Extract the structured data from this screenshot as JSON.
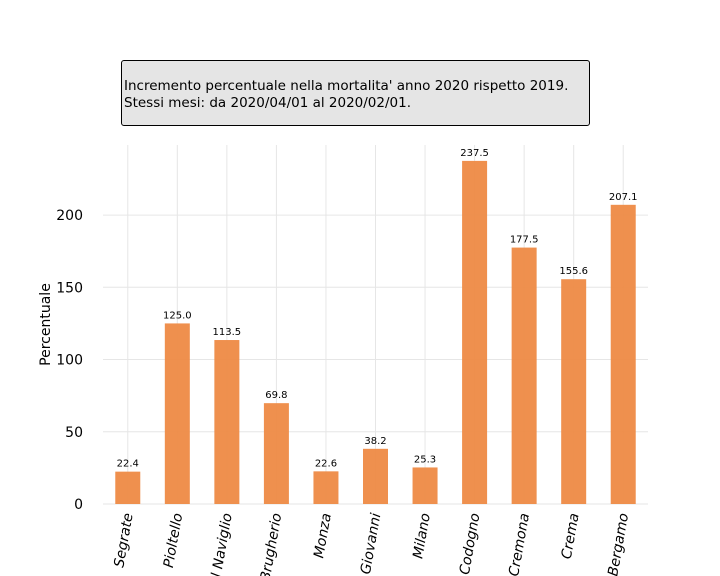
{
  "chart_data": {
    "type": "bar",
    "title": [
      "Incremento percentuale nella mortalita' anno 2020 rispetto 2019.",
      "Stessi mesi: da 2020/04/01 al 2020/02/01."
    ],
    "xlabel": "",
    "ylabel": "Percentuale",
    "categories": [
      "Segrate",
      "Pioltello",
      "Cernusco sul Naviglio",
      "Cologno Brugherio",
      "Monza",
      "Sesto San Giovanni",
      "Milano",
      "Codogno",
      "Cremona",
      "Crema",
      "Bergamo"
    ],
    "category_labels_visible": [
      "Segrate",
      "Pioltello",
      "l Naviglio",
      "Brugherio",
      "Monza",
      "Giovanni",
      "Milano",
      "Codogno",
      "Cremona",
      "Crema",
      "Bergamo"
    ],
    "values": [
      22.4,
      125.0,
      113.5,
      69.8,
      22.6,
      38.2,
      25.3,
      237.5,
      177.5,
      155.6,
      207.1
    ],
    "value_labels": [
      "22.4",
      "125.0",
      "113.5",
      "69.8",
      "22.6",
      "38.2",
      "25.3",
      "237.5",
      "177.5",
      "155.6",
      "207.1"
    ],
    "ylim": [
      0,
      250
    ],
    "yticks": [
      0,
      50,
      100,
      150,
      200
    ],
    "grid": true,
    "bar_color": "#ee8a45"
  }
}
